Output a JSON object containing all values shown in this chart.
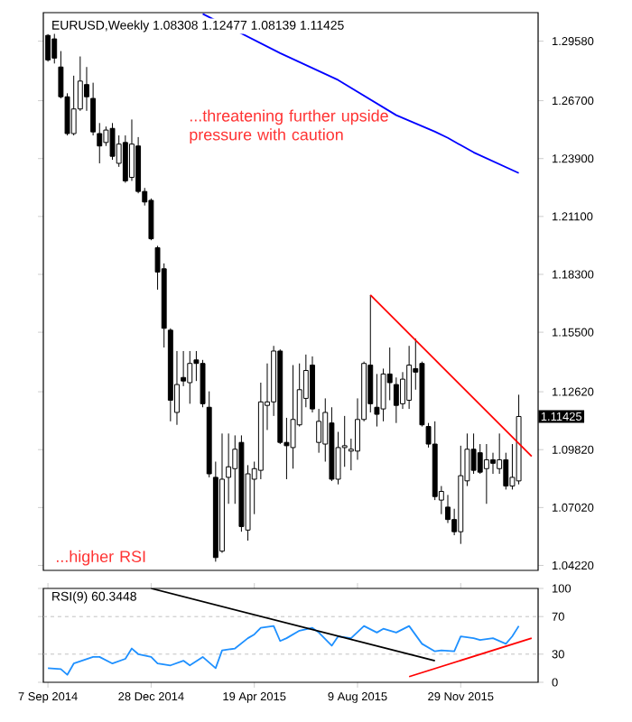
{
  "chart_data": [
    {
      "type": "candlestick",
      "title": "EURUSD,Weekly  1.08308 1.12477 1.08139 1.11425",
      "color": "#000000",
      "annotations": [
        "...threatening further upside pressure with caution",
        "...higher RSI",
        "1.11425"
      ],
      "x": [
        "2014-09-07",
        "2014-09-14",
        "2014-09-21",
        "2014-09-28",
        "2014-10-05",
        "2014-10-12",
        "2014-10-19",
        "2014-10-26",
        "2014-11-02",
        "2014-11-09",
        "2014-11-16",
        "2014-11-23",
        "2014-11-30",
        "2014-12-07",
        "2014-12-14",
        "2014-12-21",
        "2014-12-28",
        "2015-01-04",
        "2015-01-11",
        "2015-01-18",
        "2015-01-25",
        "2015-02-01",
        "2015-02-08",
        "2015-02-15",
        "2015-02-22",
        "2015-03-01",
        "2015-03-08",
        "2015-03-15",
        "2015-03-22",
        "2015-03-29",
        "2015-04-05",
        "2015-04-12",
        "2015-04-19",
        "2015-04-26",
        "2015-05-03",
        "2015-05-10",
        "2015-05-17",
        "2015-05-24",
        "2015-05-31",
        "2015-06-07",
        "2015-06-14",
        "2015-06-21",
        "2015-06-28",
        "2015-07-05",
        "2015-07-12",
        "2015-07-19",
        "2015-07-26",
        "2015-08-02",
        "2015-08-09",
        "2015-08-16",
        "2015-08-23",
        "2015-08-30",
        "2015-09-06",
        "2015-09-13",
        "2015-09-20",
        "2015-09-27",
        "2015-10-04",
        "2015-10-11",
        "2015-10-18",
        "2015-10-25",
        "2015-11-01",
        "2015-11-08",
        "2015-11-15",
        "2015-11-22",
        "2015-11-29",
        "2015-12-06",
        "2015-12-13",
        "2015-12-20",
        "2015-12-27",
        "2016-01-03",
        "2016-01-10",
        "2016-01-17",
        "2016-01-24",
        "2016-01-31"
      ],
      "ohlc": [
        [
          1.2986,
          1.2992,
          1.2859,
          1.2867
        ],
        [
          1.2969,
          1.3003,
          1.285,
          1.2876
        ],
        [
          1.2833,
          1.291,
          1.2681,
          1.2689
        ],
        [
          1.2689,
          1.2706,
          1.2502,
          1.2511
        ],
        [
          1.2511,
          1.2791,
          1.2502,
          1.263
        ],
        [
          1.263,
          1.2884,
          1.2621,
          1.2765
        ],
        [
          1.2748,
          1.2833,
          1.2621,
          1.2689
        ],
        [
          1.2681,
          1.2757,
          1.2502,
          1.2519
        ],
        [
          1.2511,
          1.2562,
          1.2367,
          1.2451
        ],
        [
          1.2468,
          1.2545,
          1.2451,
          1.2528
        ],
        [
          1.2536,
          1.2562,
          1.2384,
          1.2401
        ],
        [
          1.2367,
          1.2502,
          1.235,
          1.246
        ],
        [
          1.2468,
          1.2502,
          1.2273,
          1.2282
        ],
        [
          1.2299,
          1.2579,
          1.2282,
          1.246
        ],
        [
          1.2451,
          1.2494,
          1.2222,
          1.2231
        ],
        [
          1.2231,
          1.2248,
          1.2163,
          1.218
        ],
        [
          1.2188,
          1.2197,
          1.1995,
          1.2002
        ],
        [
          1.1959,
          1.1968,
          1.1756,
          1.1841
        ],
        [
          1.1857,
          1.1883,
          1.1476,
          1.1569
        ],
        [
          1.156,
          1.1569,
          1.1119,
          1.1221
        ],
        [
          1.1162,
          1.1459,
          1.1102,
          1.1297
        ],
        [
          1.1331,
          1.1459,
          1.1289,
          1.1314
        ],
        [
          1.1306,
          1.1459,
          1.1204,
          1.1399
        ],
        [
          1.1416,
          1.1459,
          1.1314,
          1.1399
        ],
        [
          1.1399,
          1.1416,
          1.1187,
          1.1204
        ],
        [
          1.1187,
          1.1264,
          1.0848,
          1.0865
        ],
        [
          1.0848,
          1.0924,
          1.044,
          1.046
        ],
        [
          1.0491,
          1.106,
          1.0483,
          1.0839
        ],
        [
          1.0848,
          1.106,
          1.072,
          1.0899
        ],
        [
          1.089,
          1.1051,
          1.072,
          1.0984
        ],
        [
          1.1017,
          1.1051,
          1.0585,
          1.061
        ],
        [
          1.0593,
          1.0907,
          1.0542,
          1.0865
        ],
        [
          1.0839,
          1.0924,
          1.067,
          1.089
        ],
        [
          1.0882,
          1.1306,
          1.0839,
          1.1213
        ],
        [
          1.1196,
          1.1399,
          1.1077,
          1.1213
        ],
        [
          1.1213,
          1.1484,
          1.1145,
          1.1459
        ],
        [
          1.1459,
          1.1467,
          1.1009,
          1.1017
        ],
        [
          1.1017,
          1.1136,
          1.0839,
          1.1001
        ],
        [
          1.0992,
          1.1391,
          1.089,
          1.1128
        ],
        [
          1.1102,
          1.1399,
          1.1094,
          1.1272
        ],
        [
          1.123,
          1.1442,
          1.1187,
          1.1365
        ],
        [
          1.1391,
          1.1433,
          1.1162,
          1.1179
        ],
        [
          1.1017,
          1.1179,
          1.0967,
          1.1119
        ],
        [
          1.1009,
          1.123,
          1.0924,
          1.1162
        ],
        [
          1.1111,
          1.1187,
          1.083,
          1.0839
        ],
        [
          1.0839,
          1.1068,
          1.0814,
          1.0992
        ],
        [
          1.0992,
          1.1145,
          1.0899,
          1.1001
        ],
        [
          1.0975,
          1.1035,
          1.0882,
          1.0984
        ],
        [
          1.0975,
          1.123,
          1.0933,
          1.1128
        ],
        [
          1.1128,
          1.1408,
          1.1119,
          1.1399
        ],
        [
          1.1391,
          1.173,
          1.1162,
          1.1204
        ],
        [
          1.1187,
          1.1348,
          1.1094,
          1.1153
        ],
        [
          1.1179,
          1.1374,
          1.1119,
          1.1348
        ],
        [
          1.1348,
          1.1476,
          1.1221,
          1.1306
        ],
        [
          1.1297,
          1.1331,
          1.1111,
          1.1196
        ],
        [
          1.1204,
          1.1357,
          1.1179,
          1.1323
        ],
        [
          1.1221,
          1.1484,
          1.1179,
          1.1391
        ],
        [
          1.1374,
          1.1519,
          1.1272,
          1.1357
        ],
        [
          1.1399,
          1.1408,
          1.1094,
          1.1102
        ],
        [
          1.1094,
          1.1111,
          1.0992,
          1.1009
        ],
        [
          1.1009,
          1.1119,
          1.0738,
          1.0755
        ],
        [
          1.0738,
          1.0806,
          1.067,
          1.078
        ],
        [
          1.0704,
          1.0763,
          1.0627,
          1.0644
        ],
        [
          1.0644,
          1.0696,
          1.0568,
          1.0585
        ],
        [
          1.0585,
          1.1001,
          1.0526,
          1.0856
        ],
        [
          1.0831,
          1.106,
          1.0806,
          1.0984
        ],
        [
          1.0984,
          1.106,
          1.0865,
          1.0882
        ],
        [
          1.0967,
          1.1009,
          1.0865,
          1.0873
        ],
        [
          1.089,
          1.1009,
          1.072,
          1.0933
        ],
        [
          1.0933,
          1.0967,
          1.0865,
          1.0916
        ],
        [
          1.089,
          1.106,
          1.0865,
          1.0933
        ],
        [
          1.0933,
          1.0967,
          1.0789,
          1.0806
        ],
        [
          1.0806,
          1.1009,
          1.0789,
          1.0848
        ],
        [
          1.08308,
          1.12477,
          1.08139,
          1.11425
        ]
      ],
      "series": [
        {
          "type": "line",
          "color": "#0000ff",
          "x": [
            "2015-02-22",
            "2015-05-17",
            "2015-07-19",
            "2015-09-20",
            "2015-11-01",
            "2015-11-15",
            "2015-12-13",
            "2016-01-31"
          ],
          "values": [
            1.309,
            1.29,
            1.277,
            1.26,
            1.252,
            1.249,
            1.242,
            1.232
          ]
        },
        {
          "type": "line",
          "color": "#ff0000",
          "x": [
            "2015-08-23",
            "2016-02-14"
          ],
          "values": [
            1.173,
            1.095
          ]
        }
      ],
      "xlim": [
        "2014-09-02",
        "2016-02-21"
      ],
      "ylim": [
        1.0398,
        1.3096
      ],
      "yticks": [
        {
          "value": 1.2958,
          "label": "1.29580"
        },
        {
          "value": 1.267,
          "label": "1.26700"
        },
        {
          "value": 1.239,
          "label": "1.23900"
        },
        {
          "value": 1.211,
          "label": "1.21100"
        },
        {
          "value": 1.183,
          "label": "1.18300"
        },
        {
          "value": 1.155,
          "label": "1.15500"
        },
        {
          "value": 1.1262,
          "label": "1.12620"
        },
        {
          "value": 1.0982,
          "label": "1.09820"
        },
        {
          "value": 1.0702,
          "label": "1.07020"
        },
        {
          "value": 1.0422,
          "label": "1.04220"
        }
      ],
      "tick_labels": "y"
    },
    {
      "type": "line",
      "title": "RSI(9) 60.3448",
      "series": [
        {
          "color": "#1e90ff",
          "x": [
            "2014-09-07",
            "2014-09-21",
            "2014-09-28",
            "2014-10-05",
            "2014-10-26",
            "2014-11-02",
            "2014-11-16",
            "2014-11-30",
            "2014-12-07",
            "2014-12-14",
            "2014-12-28",
            "2015-01-04",
            "2015-01-18",
            "2015-02-01",
            "2015-02-08",
            "2015-02-22",
            "2015-03-08",
            "2015-03-15",
            "2015-03-29",
            "2015-04-12",
            "2015-04-19",
            "2015-04-26",
            "2015-05-10",
            "2015-05-17",
            "2015-05-24",
            "2015-06-07",
            "2015-06-21",
            "2015-06-28",
            "2015-07-12",
            "2015-07-19",
            "2015-08-02",
            "2015-08-16",
            "2015-08-30",
            "2015-09-06",
            "2015-09-20",
            "2015-10-04",
            "2015-10-18",
            "2015-11-01",
            "2015-11-08",
            "2015-11-22",
            "2015-11-29",
            "2015-12-13",
            "2015-12-20",
            "2016-01-03",
            "2016-01-17",
            "2016-01-24",
            "2016-01-31"
          ],
          "values": [
            15,
            14,
            8,
            20,
            27,
            27,
            20,
            25,
            36,
            30,
            27,
            20,
            18,
            23,
            18,
            27,
            15,
            34,
            36,
            47,
            51,
            58,
            60,
            44,
            47,
            55,
            58,
            53,
            39,
            49,
            47,
            60,
            53,
            57,
            53,
            60,
            41,
            33,
            34,
            33,
            49,
            47,
            45,
            47,
            41,
            49,
            60
          ]
        },
        {
          "color": "#000000",
          "x": [
            "2014-12-28",
            "2015-11-01"
          ],
          "values": [
            100,
            23
          ]
        },
        {
          "color": "#ff0000",
          "x": [
            "2015-10-04",
            "2016-02-14"
          ],
          "values": [
            6,
            47
          ]
        }
      ],
      "ref_lines": [
        {
          "axis": "y",
          "value": 70,
          "color": "#c0c0c0",
          "line_style": "dashed"
        },
        {
          "axis": "y",
          "value": 30,
          "color": "#c0c0c0",
          "line_style": "dashed"
        }
      ],
      "xlim": [
        "2014-09-02",
        "2016-02-21"
      ],
      "ylim": [
        0,
        100
      ],
      "yticks": [
        0,
        30,
        70,
        100
      ],
      "xticks": [
        {
          "value": "2014-09-07",
          "label": "7 Sep 2014"
        },
        {
          "value": "2014-12-28",
          "label": "28 Dec 2014"
        },
        {
          "value": "2015-04-19",
          "label": "19 Apr 2015"
        },
        {
          "value": "2015-08-09",
          "label": "9 Aug 2015"
        },
        {
          "value": "2015-11-29",
          "label": "29 Nov 2015"
        }
      ]
    }
  ]
}
